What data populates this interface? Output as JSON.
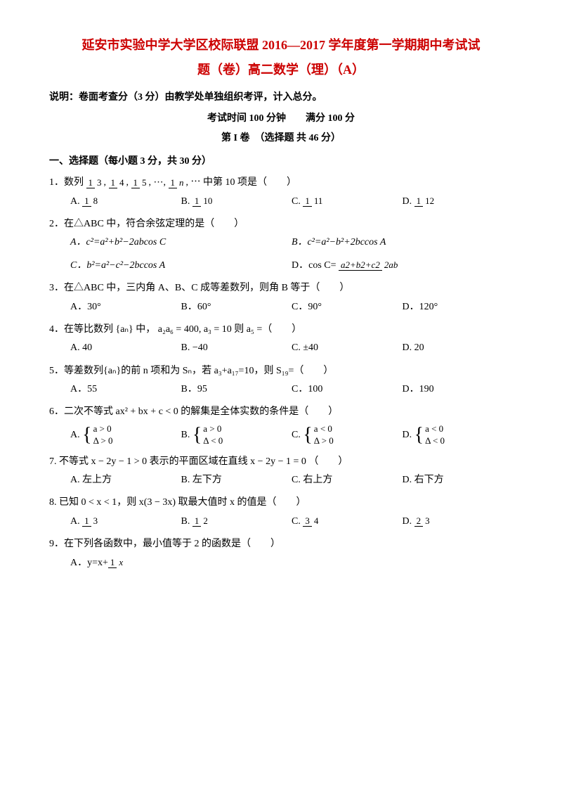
{
  "header": {
    "title_line1": "延安市实验中学大学区校际联盟 2016—2017 学年度第一学期期中考试试",
    "title_line2": "题（卷）高二数学（理）（A）",
    "note": "说明：卷面考查分（3 分）由教学处单独组织考评，计入总分。",
    "time_score": "考试时间 100 分钟　　满分 100 分",
    "part1": "第 I 卷　（选择题 共 46 分）"
  },
  "section1": {
    "head": "一、选择题（每小题 3 分，共 30 分）"
  },
  "q1": {
    "stem_pre": "1．数列 ",
    "stem_post": " 中第 10 项是（　　）",
    "seq": [
      "1",
      "3",
      "1",
      "4",
      "1",
      "5",
      "1",
      "n"
    ],
    "opts": {
      "A": {
        "n": "1",
        "d": "8"
      },
      "B": {
        "n": "1",
        "d": "10"
      },
      "C": {
        "n": "1",
        "d": "11"
      },
      "D": {
        "n": "1",
        "d": "12"
      }
    }
  },
  "q2": {
    "stem": "2．在△ABC 中，符合余弦定理的是（　　）",
    "A": "A．c²=a²+b²−2abcos C",
    "B": "B．c²=a²−b²+2bccos A",
    "C": "C．b²=a²−c²−2bccos A",
    "D_pre": "D．cos C= ",
    "D_num": "a2+b2+c2",
    "D_den": "2ab"
  },
  "q3": {
    "stem": "3．在△ABC 中，三内角 A、B、C 成等差数列，则角 B 等于（　　）",
    "A": "A．30°",
    "B": "B．60°",
    "C": "C．90°",
    "D": "D．120°"
  },
  "q4": {
    "stem": "4．在等比数列 {aₙ} 中， a₂a₆ = 400, a₃ = 10 则 a₅ =（　　）",
    "A": "A. 40",
    "B": "B. −40",
    "C": "C. ±40",
    "D": "D. 20"
  },
  "q5": {
    "stem": "5．等差数列{aₙ}的前 n 项和为 Sₙ，若 a₃+a₁₇=10，则 S₁₉=（　　）",
    "A": "A．55",
    "B": "B．95",
    "C": "C．100",
    "D": "D．190"
  },
  "q6": {
    "stem": "6．二次不等式 ax² + bx + c < 0 的解集是全体实数的条件是（　　）",
    "A": {
      "r1": "a > 0",
      "r2": "Δ > 0"
    },
    "B": {
      "r1": "a > 0",
      "r2": "Δ < 0"
    },
    "C": {
      "r1": "a < 0",
      "r2": "Δ > 0"
    },
    "D": {
      "r1": "a < 0",
      "r2": "Δ < 0"
    }
  },
  "q7": {
    "stem": "7. 不等式 x − 2y − 1 > 0 表示的平面区域在直线 x − 2y − 1 = 0 （　　）",
    "A": "A. 左上方",
    "B": "B. 左下方",
    "C": "C. 右上方",
    "D": "D. 右下方"
  },
  "q8": {
    "stem": "8. 已知 0 < x < 1，则 x(3 − 3x) 取最大值时 x 的值是（　　）",
    "A": {
      "n": "1",
      "d": "3"
    },
    "B": {
      "n": "1",
      "d": "2"
    },
    "C": {
      "n": "3",
      "d": "4"
    },
    "D": {
      "n": "2",
      "d": "3"
    }
  },
  "q9": {
    "stem": "9．在下列各函数中，最小值等于 2 的函数是（　　）",
    "A_pre": "A．y=x+",
    "A_num": "1",
    "A_den": "x"
  },
  "labels": {
    "A": "A.",
    "B": "B.",
    "C": "C.",
    "D": "D."
  }
}
